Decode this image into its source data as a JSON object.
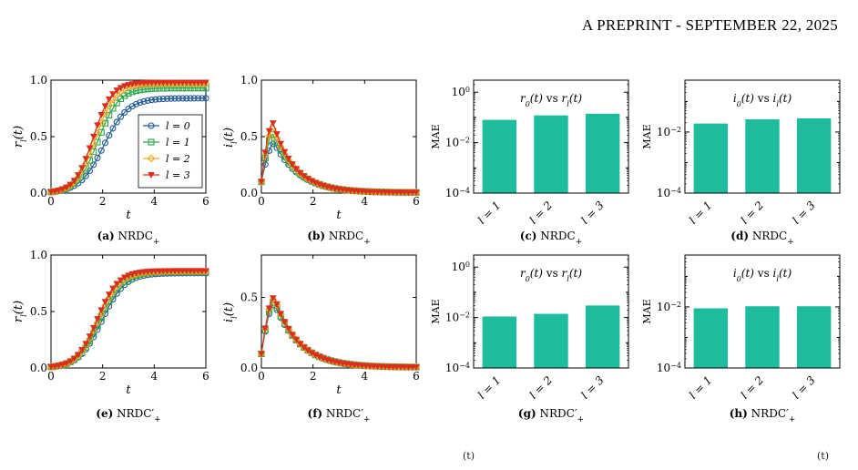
{
  "header": {
    "text": "A PREPRINT - SEPTEMBER 22, 2025"
  },
  "footnotes": [
    "(t)",
    "(t)"
  ],
  "colors": {
    "l0": "#1f5a99",
    "l1": "#2aa54b",
    "l2": "#f0a81c",
    "l3": "#d7301f",
    "bar": "#1dbc9c"
  },
  "chart_data": [
    {
      "id": "a",
      "type": "line",
      "caption_letter": "(a)",
      "caption_text": "NRDC",
      "xlabel": "t",
      "ylabel": "r_l(t)",
      "xlim": [
        0,
        6
      ],
      "ylim": [
        0,
        1
      ],
      "xticks": [
        "0",
        "2",
        "4",
        "6"
      ],
      "yticks": [
        "0.0",
        "0.5",
        "1.0"
      ],
      "legend": [
        "l = 0",
        "l = 1",
        "l = 2",
        "l = 3"
      ],
      "legend_loc": "lower right",
      "series": [
        {
          "name": "l = 0",
          "kind": "logistic",
          "r0": 0.01,
          "K": 0.84,
          "k": 1.35
        },
        {
          "name": "l = 1",
          "kind": "logistic",
          "r0": 0.01,
          "K": 0.93,
          "k": 1.55
        },
        {
          "name": "l = 2",
          "kind": "logistic",
          "r0": 0.01,
          "K": 0.97,
          "k": 1.65
        },
        {
          "name": "l = 3",
          "kind": "logistic",
          "r0": 0.01,
          "K": 0.98,
          "k": 1.75
        }
      ]
    },
    {
      "id": "b",
      "type": "line",
      "caption_letter": "(b)",
      "caption_text": "NRDC",
      "xlabel": "t",
      "ylabel": "i_l(t)",
      "xlim": [
        0,
        6
      ],
      "ylim": [
        0,
        1
      ],
      "xticks": [
        "0",
        "2",
        "4",
        "6"
      ],
      "yticks": [
        "0.0",
        "0.5",
        "1.0"
      ],
      "series": [
        {
          "name": "l = 0",
          "kind": "pulse",
          "i0": 0.1,
          "peak": 0.44,
          "tp": 0.5,
          "decay": 1.05
        },
        {
          "name": "l = 1",
          "kind": "pulse",
          "i0": 0.1,
          "peak": 0.52,
          "tp": 0.45,
          "decay": 1.1
        },
        {
          "name": "l = 2",
          "kind": "pulse",
          "i0": 0.1,
          "peak": 0.57,
          "tp": 0.45,
          "decay": 1.15
        },
        {
          "name": "l = 3",
          "kind": "pulse",
          "i0": 0.1,
          "peak": 0.62,
          "tp": 0.45,
          "decay": 1.2
        }
      ]
    },
    {
      "id": "c",
      "type": "bar",
      "caption_letter": "(c)",
      "caption_text": "NRDC",
      "ylabel": "MAE",
      "yscale": "log",
      "ylim": [
        0.0001,
        3
      ],
      "ylim_exp": [
        -4,
        0
      ],
      "categories": [
        "l = 1",
        "l = 2",
        "l = 3"
      ],
      "values": [
        0.08,
        0.12,
        0.14
      ],
      "inner_title": "r_0(t) vs r_l(t)"
    },
    {
      "id": "d",
      "type": "bar",
      "caption_letter": "(d)",
      "caption_text": "NRDC",
      "ylabel": "MAE",
      "yscale": "log",
      "ylim": [
        0.0001,
        0.5
      ],
      "ylim_exp": [
        -4,
        -1
      ],
      "categories": [
        "l = 1",
        "l = 2",
        "l = 3"
      ],
      "values": [
        0.019,
        0.026,
        0.028
      ],
      "inner_title": "i_0(t) vs i_l(t)"
    },
    {
      "id": "e",
      "type": "line",
      "caption_letter": "(e)",
      "caption_text": "NRDC′",
      "xlabel": "t",
      "ylabel": "r_l(t)",
      "xlim": [
        0,
        6
      ],
      "ylim": [
        0,
        1
      ],
      "xticks": [
        "0",
        "2",
        "4",
        "6"
      ],
      "yticks": [
        "0.0",
        "0.5",
        "1.0"
      ],
      "series": [
        {
          "name": "l = 0",
          "kind": "logistic",
          "r0": 0.01,
          "K": 0.84,
          "k": 1.4
        },
        {
          "name": "l = 1",
          "kind": "logistic",
          "r0": 0.01,
          "K": 0.85,
          "k": 1.45
        },
        {
          "name": "l = 2",
          "kind": "logistic",
          "r0": 0.01,
          "K": 0.855,
          "k": 1.5
        },
        {
          "name": "l = 3",
          "kind": "logistic",
          "r0": 0.01,
          "K": 0.86,
          "k": 1.55
        }
      ]
    },
    {
      "id": "f",
      "type": "line",
      "caption_letter": "(f)",
      "caption_text": "NRDC′",
      "xlabel": "t",
      "ylabel": "i_l(t)",
      "xlim": [
        0,
        6
      ],
      "ylim": [
        0,
        0.8
      ],
      "xticks": [
        "0",
        "2",
        "4",
        "6"
      ],
      "yticks": [
        "0.0",
        "0.5"
      ],
      "series": [
        {
          "name": "l = 0",
          "kind": "pulse",
          "i0": 0.1,
          "peak": 0.45,
          "tp": 0.5,
          "decay": 1.0
        },
        {
          "name": "l = 1",
          "kind": "pulse",
          "i0": 0.1,
          "peak": 0.47,
          "tp": 0.5,
          "decay": 1.05
        },
        {
          "name": "l = 2",
          "kind": "pulse",
          "i0": 0.1,
          "peak": 0.49,
          "tp": 0.5,
          "decay": 1.08
        },
        {
          "name": "l = 3",
          "kind": "pulse",
          "i0": 0.1,
          "peak": 0.5,
          "tp": 0.5,
          "decay": 1.1
        }
      ]
    },
    {
      "id": "g",
      "type": "bar",
      "caption_letter": "(g)",
      "caption_text": "NRDC′",
      "ylabel": "MAE",
      "yscale": "log",
      "ylim": [
        0.0001,
        3
      ],
      "ylim_exp": [
        -4,
        0
      ],
      "categories": [
        "l = 1",
        "l = 2",
        "l = 3"
      ],
      "values": [
        0.011,
        0.014,
        0.03
      ],
      "inner_title": "r_0(t) vs r_l(t)"
    },
    {
      "id": "h",
      "type": "bar",
      "caption_letter": "(h)",
      "caption_text": "NRDC′",
      "ylabel": "MAE",
      "yscale": "log",
      "ylim": [
        0.0001,
        0.5
      ],
      "ylim_exp": [
        -4,
        -1
      ],
      "categories": [
        "l = 1",
        "l = 2",
        "l = 3"
      ],
      "values": [
        0.009,
        0.0105,
        0.0105
      ],
      "inner_title": "i_0(t) vs i_l(t)"
    }
  ]
}
